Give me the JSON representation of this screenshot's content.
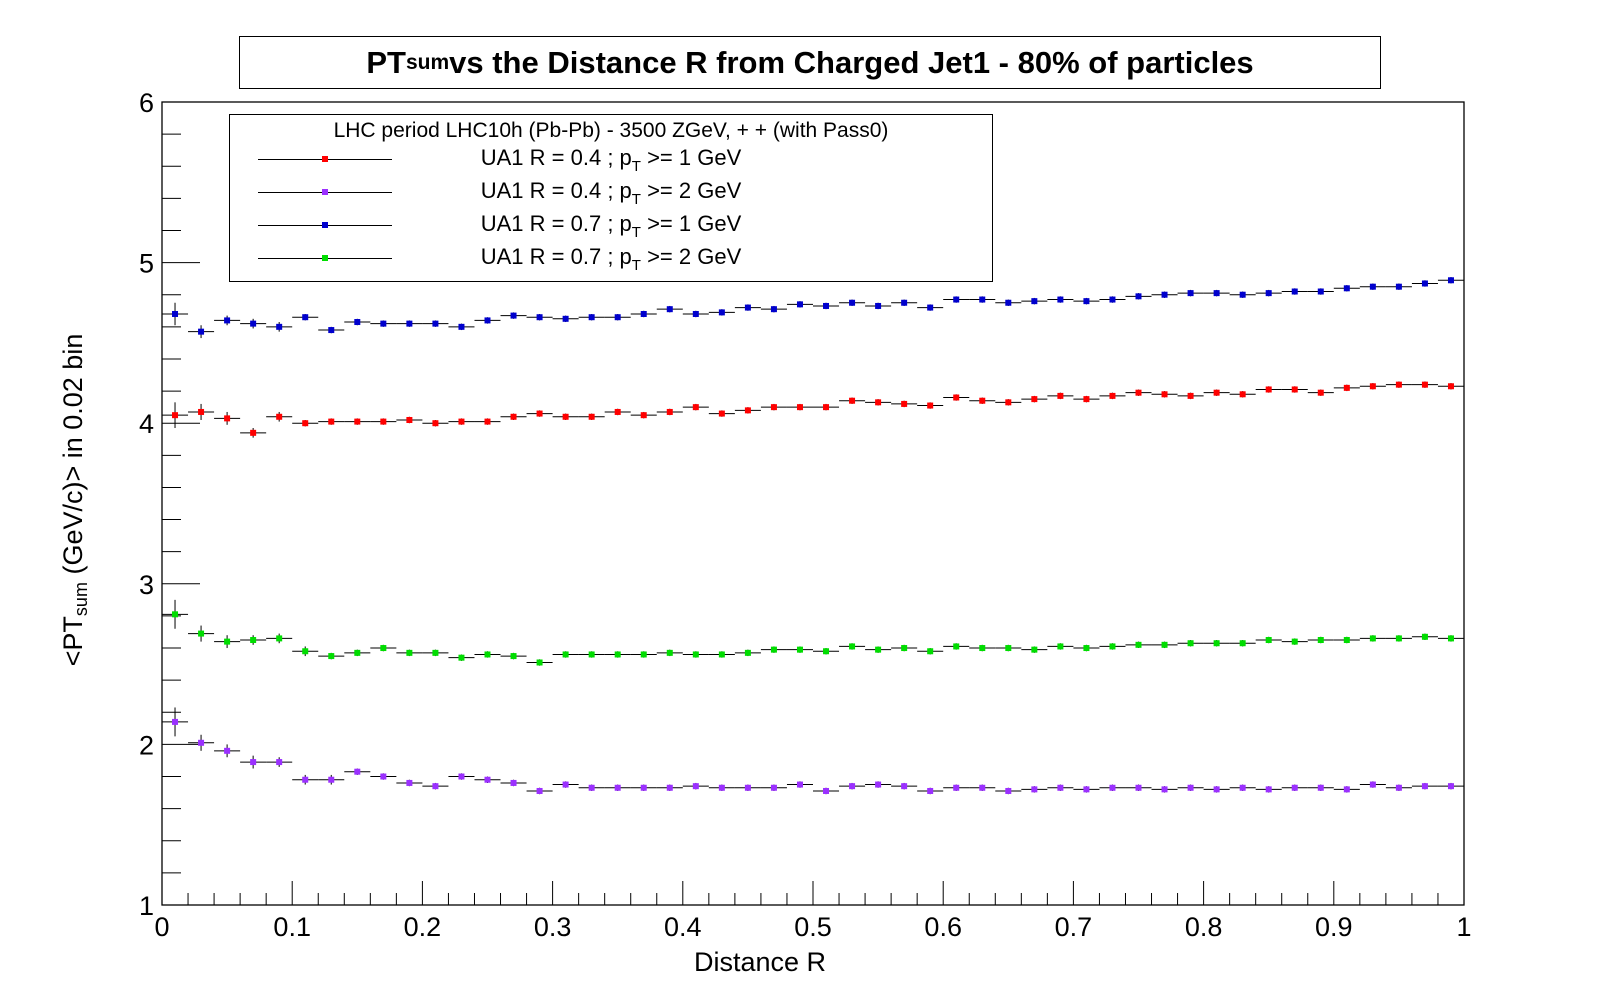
{
  "chart_data": {
    "type": "scatter",
    "title": {
      "main": "PT",
      "sub": "sum",
      "rest": " vs the Distance R from Charged Jet1 - 80% of particles"
    },
    "xlabel": "Distance R",
    "ylabel": {
      "pre": "<PT",
      "sub": "sum",
      "post": " (GeV/c)> in 0.02 bin"
    },
    "xlim": [
      0,
      1
    ],
    "ylim": [
      1,
      6
    ],
    "x_ticks": [
      "0",
      "0.1",
      "0.2",
      "0.3",
      "0.4",
      "0.5",
      "0.6",
      "0.7",
      "0.8",
      "0.9",
      "1"
    ],
    "y_ticks": [
      "1",
      "2",
      "3",
      "4",
      "5",
      "6"
    ],
    "bin_width": 0.02,
    "legend": {
      "header": "LHC period LHC10h (Pb-Pb) - 3500 ZGeV, + + (with Pass0)",
      "position": "top-left"
    },
    "series": [
      {
        "label_pre": "UA1 R = 0.4 ; p",
        "label_sub": "T",
        "label_post": " >= 1 GeV",
        "color": "#ff0000",
        "x": [
          0.01,
          0.03,
          0.05,
          0.07,
          0.09,
          0.11,
          0.13,
          0.15,
          0.17,
          0.19,
          0.21,
          0.23,
          0.25,
          0.27,
          0.29,
          0.31,
          0.33,
          0.35,
          0.37,
          0.39,
          0.41,
          0.43,
          0.45,
          0.47,
          0.49,
          0.51,
          0.53,
          0.55,
          0.57,
          0.59,
          0.61,
          0.63,
          0.65,
          0.67,
          0.69,
          0.71,
          0.73,
          0.75,
          0.77,
          0.79,
          0.81,
          0.83,
          0.85,
          0.87,
          0.89,
          0.91,
          0.93,
          0.95,
          0.97,
          0.99
        ],
        "y": [
          4.05,
          4.07,
          4.03,
          3.94,
          4.04,
          4.0,
          4.01,
          4.01,
          4.01,
          4.02,
          4.0,
          4.01,
          4.01,
          4.04,
          4.06,
          4.04,
          4.04,
          4.07,
          4.05,
          4.07,
          4.1,
          4.06,
          4.08,
          4.1,
          4.1,
          4.1,
          4.14,
          4.13,
          4.12,
          4.11,
          4.16,
          4.14,
          4.13,
          4.15,
          4.17,
          4.15,
          4.17,
          4.19,
          4.18,
          4.17,
          4.19,
          4.18,
          4.21,
          4.21,
          4.19,
          4.22,
          4.23,
          4.24,
          4.24,
          4.23
        ],
        "err": [
          0.08,
          0.05,
          0.04,
          0.03,
          0.03,
          0.02,
          0.02,
          0.02,
          0.02,
          0.02,
          0.02,
          0.02,
          0.02,
          0.02,
          0.02,
          0.02,
          0.02,
          0.02,
          0.02,
          0.02,
          0.02,
          0.02,
          0.02,
          0.02,
          0.02,
          0.02,
          0.02,
          0.02,
          0.02,
          0.02,
          0.02,
          0.02,
          0.02,
          0.02,
          0.02,
          0.02,
          0.02,
          0.02,
          0.02,
          0.02,
          0.02,
          0.02,
          0.02,
          0.02,
          0.02,
          0.02,
          0.02,
          0.02,
          0.02,
          0.02
        ]
      },
      {
        "label_pre": "UA1 R = 0.4 ; p",
        "label_sub": "T",
        "label_post": " >= 2 GeV",
        "color": "#9b30ff",
        "x": [
          0.01,
          0.03,
          0.05,
          0.07,
          0.09,
          0.11,
          0.13,
          0.15,
          0.17,
          0.19,
          0.21,
          0.23,
          0.25,
          0.27,
          0.29,
          0.31,
          0.33,
          0.35,
          0.37,
          0.39,
          0.41,
          0.43,
          0.45,
          0.47,
          0.49,
          0.51,
          0.53,
          0.55,
          0.57,
          0.59,
          0.61,
          0.63,
          0.65,
          0.67,
          0.69,
          0.71,
          0.73,
          0.75,
          0.77,
          0.79,
          0.81,
          0.83,
          0.85,
          0.87,
          0.89,
          0.91,
          0.93,
          0.95,
          0.97,
          0.99
        ],
        "y": [
          2.14,
          2.01,
          1.96,
          1.89,
          1.89,
          1.78,
          1.78,
          1.83,
          1.8,
          1.76,
          1.74,
          1.8,
          1.78,
          1.76,
          1.71,
          1.75,
          1.73,
          1.73,
          1.73,
          1.73,
          1.74,
          1.73,
          1.73,
          1.73,
          1.75,
          1.71,
          1.74,
          1.75,
          1.74,
          1.71,
          1.73,
          1.73,
          1.71,
          1.72,
          1.73,
          1.72,
          1.73,
          1.73,
          1.72,
          1.73,
          1.72,
          1.73,
          1.72,
          1.73,
          1.73,
          1.72,
          1.75,
          1.73,
          1.74,
          1.74
        ],
        "err": [
          0.09,
          0.05,
          0.04,
          0.04,
          0.03,
          0.03,
          0.03,
          0.02,
          0.02,
          0.02,
          0.02,
          0.02,
          0.02,
          0.02,
          0.02,
          0.02,
          0.02,
          0.02,
          0.02,
          0.02,
          0.02,
          0.02,
          0.02,
          0.02,
          0.02,
          0.02,
          0.02,
          0.02,
          0.02,
          0.02,
          0.02,
          0.02,
          0.02,
          0.02,
          0.02,
          0.02,
          0.02,
          0.02,
          0.02,
          0.02,
          0.02,
          0.02,
          0.02,
          0.02,
          0.02,
          0.02,
          0.02,
          0.02,
          0.02,
          0.02
        ]
      },
      {
        "label_pre": "UA1 R = 0.7 ; p",
        "label_sub": "T",
        "label_post": " >= 1 GeV",
        "color": "#0000cd",
        "x": [
          0.01,
          0.03,
          0.05,
          0.07,
          0.09,
          0.11,
          0.13,
          0.15,
          0.17,
          0.19,
          0.21,
          0.23,
          0.25,
          0.27,
          0.29,
          0.31,
          0.33,
          0.35,
          0.37,
          0.39,
          0.41,
          0.43,
          0.45,
          0.47,
          0.49,
          0.51,
          0.53,
          0.55,
          0.57,
          0.59,
          0.61,
          0.63,
          0.65,
          0.67,
          0.69,
          0.71,
          0.73,
          0.75,
          0.77,
          0.79,
          0.81,
          0.83,
          0.85,
          0.87,
          0.89,
          0.91,
          0.93,
          0.95,
          0.97,
          0.99
        ],
        "y": [
          4.68,
          4.57,
          4.64,
          4.62,
          4.6,
          4.66,
          4.58,
          4.63,
          4.62,
          4.62,
          4.62,
          4.6,
          4.64,
          4.67,
          4.66,
          4.65,
          4.66,
          4.66,
          4.68,
          4.71,
          4.68,
          4.69,
          4.72,
          4.71,
          4.74,
          4.73,
          4.75,
          4.73,
          4.75,
          4.72,
          4.77,
          4.77,
          4.75,
          4.76,
          4.77,
          4.76,
          4.77,
          4.79,
          4.8,
          4.81,
          4.81,
          4.8,
          4.81,
          4.82,
          4.82,
          4.84,
          4.85,
          4.85,
          4.87,
          4.89
        ],
        "err": [
          0.07,
          0.04,
          0.03,
          0.03,
          0.03,
          0.02,
          0.02,
          0.02,
          0.02,
          0.02,
          0.02,
          0.02,
          0.02,
          0.02,
          0.02,
          0.02,
          0.02,
          0.02,
          0.02,
          0.02,
          0.02,
          0.02,
          0.02,
          0.02,
          0.02,
          0.02,
          0.02,
          0.02,
          0.02,
          0.02,
          0.02,
          0.02,
          0.02,
          0.02,
          0.02,
          0.02,
          0.02,
          0.02,
          0.02,
          0.02,
          0.02,
          0.02,
          0.02,
          0.02,
          0.02,
          0.02,
          0.02,
          0.02,
          0.02,
          0.02
        ]
      },
      {
        "label_pre": "UA1 R = 0.7 ; p",
        "label_sub": "T",
        "label_post": " >= 2 GeV",
        "color": "#00dd00",
        "x": [
          0.01,
          0.03,
          0.05,
          0.07,
          0.09,
          0.11,
          0.13,
          0.15,
          0.17,
          0.19,
          0.21,
          0.23,
          0.25,
          0.27,
          0.29,
          0.31,
          0.33,
          0.35,
          0.37,
          0.39,
          0.41,
          0.43,
          0.45,
          0.47,
          0.49,
          0.51,
          0.53,
          0.55,
          0.57,
          0.59,
          0.61,
          0.63,
          0.65,
          0.67,
          0.69,
          0.71,
          0.73,
          0.75,
          0.77,
          0.79,
          0.81,
          0.83,
          0.85,
          0.87,
          0.89,
          0.91,
          0.93,
          0.95,
          0.97,
          0.99
        ],
        "y": [
          2.81,
          2.69,
          2.64,
          2.65,
          2.66,
          2.58,
          2.55,
          2.57,
          2.6,
          2.57,
          2.57,
          2.54,
          2.56,
          2.55,
          2.51,
          2.56,
          2.56,
          2.56,
          2.56,
          2.57,
          2.56,
          2.56,
          2.57,
          2.59,
          2.59,
          2.58,
          2.61,
          2.59,
          2.6,
          2.58,
          2.61,
          2.6,
          2.6,
          2.59,
          2.61,
          2.6,
          2.61,
          2.62,
          2.62,
          2.63,
          2.63,
          2.63,
          2.65,
          2.64,
          2.65,
          2.65,
          2.66,
          2.66,
          2.67,
          2.66
        ],
        "err": [
          0.09,
          0.05,
          0.04,
          0.03,
          0.03,
          0.03,
          0.02,
          0.02,
          0.02,
          0.02,
          0.02,
          0.02,
          0.02,
          0.02,
          0.02,
          0.02,
          0.02,
          0.02,
          0.02,
          0.02,
          0.02,
          0.02,
          0.02,
          0.02,
          0.02,
          0.02,
          0.02,
          0.02,
          0.02,
          0.02,
          0.02,
          0.02,
          0.02,
          0.02,
          0.02,
          0.02,
          0.02,
          0.02,
          0.02,
          0.02,
          0.02,
          0.02,
          0.02,
          0.02,
          0.02,
          0.02,
          0.02,
          0.02,
          0.02,
          0.02
        ]
      }
    ]
  }
}
